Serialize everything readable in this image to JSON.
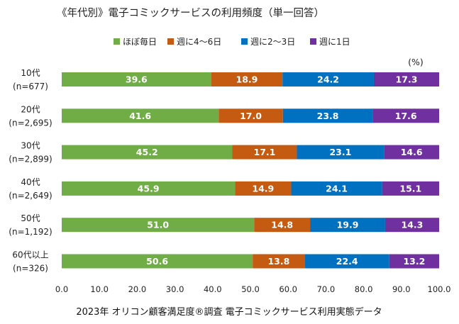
{
  "chart_data": {
    "type": "bar",
    "orientation": "horizontal",
    "stacked": true,
    "title": "《年代別》電子コミックサービスの利用頻度（単一回答）",
    "unit_label": "(%)",
    "footer": "2023年 オリコン顧客満足度®調査 電子コミックサービス利用実態データ",
    "legend_position": "top",
    "grid": false,
    "xlim": [
      0,
      100
    ],
    "x_ticks": [
      "0.0",
      "10.0",
      "20.0",
      "30.0",
      "40.0",
      "50.0",
      "60.0",
      "70.0",
      "80.0",
      "90.0",
      "100.0"
    ],
    "categories": [
      [
        "10代",
        "(n=677)"
      ],
      [
        "20代",
        "(n=2,695)"
      ],
      [
        "30代",
        "(n=2,899)"
      ],
      [
        "40代",
        "(n=2,649)"
      ],
      [
        "50代",
        "(n=1,192)"
      ],
      [
        "60代以上",
        "(n=326)"
      ]
    ],
    "series": [
      {
        "name": "ほぼ毎日",
        "color": "#70ad47",
        "values": [
          39.6,
          41.6,
          45.2,
          45.9,
          51.0,
          50.6
        ]
      },
      {
        "name": "週に4～6日",
        "color": "#c55a11",
        "values": [
          18.9,
          17.0,
          17.1,
          14.9,
          14.8,
          13.8
        ]
      },
      {
        "name": "週に2～3日",
        "color": "#0070c0",
        "values": [
          24.2,
          23.8,
          23.1,
          24.1,
          19.9,
          22.4
        ]
      },
      {
        "name": "週に1日",
        "color": "#7030a0",
        "values": [
          17.3,
          17.6,
          14.6,
          15.1,
          14.3,
          13.2
        ]
      }
    ]
  }
}
